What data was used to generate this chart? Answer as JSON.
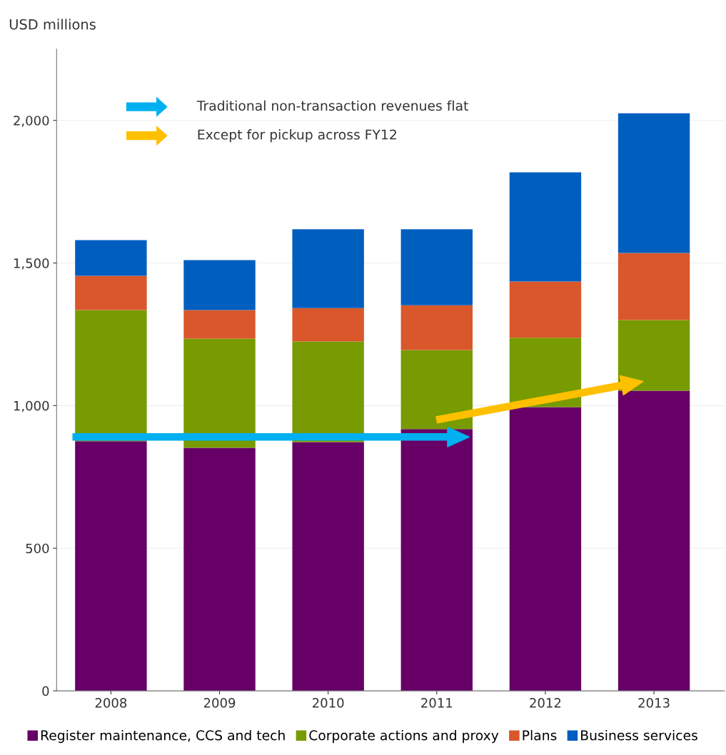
{
  "chart_data": {
    "type": "bar",
    "stacked": true,
    "ylabel": "USD millions",
    "categories": [
      "2008",
      "2009",
      "2010",
      "2011",
      "2012",
      "2013"
    ],
    "series": [
      {
        "name": "Register maintenance, CCS and tech",
        "color": "#660066",
        "values": [
          875,
          852,
          872,
          918,
          995,
          1052
        ]
      },
      {
        "name": "Corporate actions and proxy",
        "color": "#779b00",
        "values": [
          460,
          383,
          353,
          277,
          243,
          248
        ]
      },
      {
        "name": "Plans",
        "color": "#d9572b",
        "values": [
          120,
          100,
          117,
          157,
          197,
          235
        ]
      },
      {
        "name": "Business services",
        "color": "#005ebf",
        "values": [
          125,
          175,
          276,
          266,
          383,
          490
        ]
      }
    ],
    "annotations": [
      "Traditional non-transaction revenues flat",
      "Except for pickup across FY12"
    ],
    "ylim": [
      0,
      2250
    ],
    "yticks": [
      0,
      {
        "value": 500,
        "label": "500"
      },
      {
        "value": 1000,
        "label": "1,000"
      },
      {
        "value": 1500,
        "label": "1,500"
      },
      {
        "value": 2000,
        "label": "2,000"
      }
    ],
    "grid": "y",
    "legend": "bottom"
  }
}
